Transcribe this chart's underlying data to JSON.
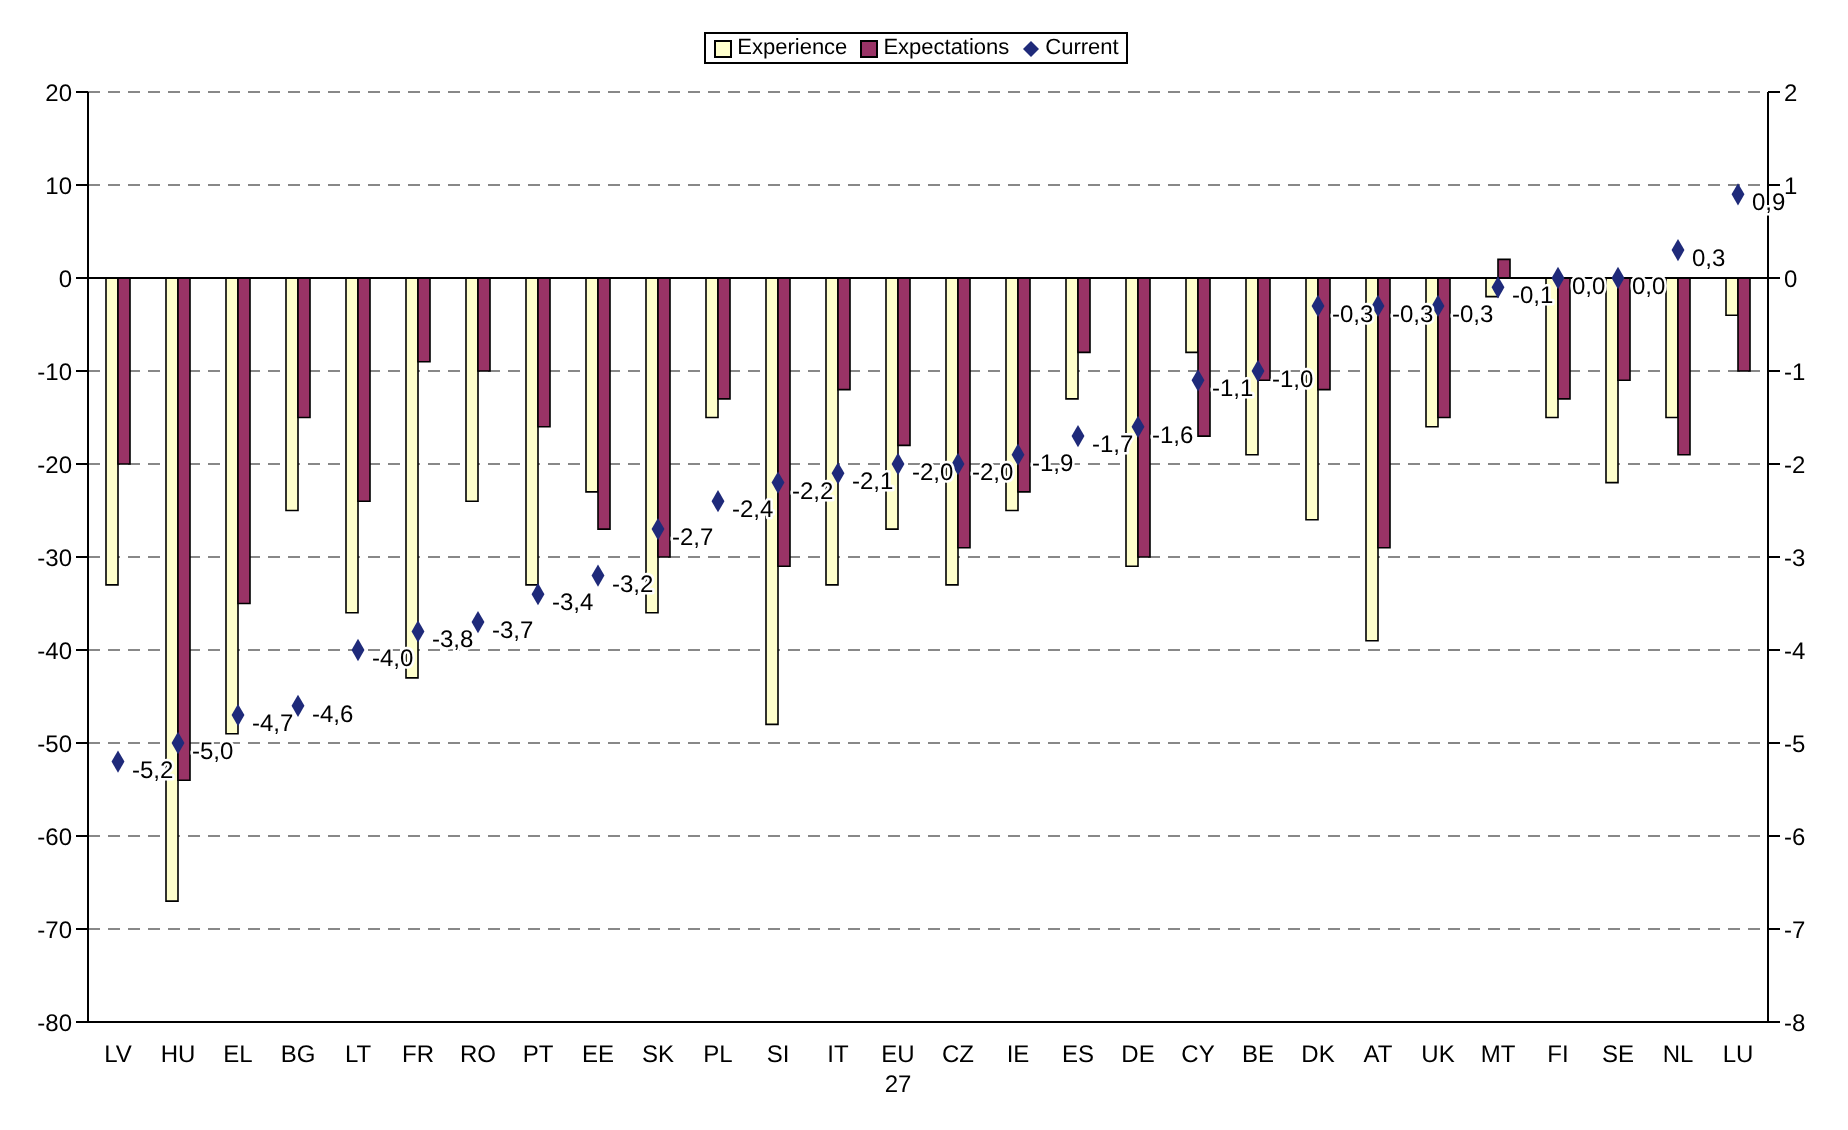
{
  "chart_data": {
    "type": "bar",
    "categories": [
      "LV",
      "HU",
      "EL",
      "BG",
      "LT",
      "FR",
      "RO",
      "PT",
      "EE",
      "SK",
      "PL",
      "SI",
      "IT",
      "EU 27",
      "CZ",
      "IE",
      "ES",
      "DE",
      "CY",
      "BE",
      "DK",
      "AT",
      "UK",
      "MT",
      "FI",
      "SE",
      "NL",
      "LU"
    ],
    "series": [
      {
        "name": "Experience",
        "color": "#ffffcc",
        "values": [
          -33,
          -67,
          -49,
          -25,
          -36,
          -43,
          -24,
          -33,
          -23,
          -36,
          -15,
          -48,
          -33,
          -27,
          -33,
          -25,
          -13,
          -31,
          -8,
          -19,
          -26,
          -39,
          -16,
          -2,
          -15,
          -22,
          -15,
          -4
        ]
      },
      {
        "name": "Expectations",
        "color": "#993366",
        "values": [
          -20,
          -54,
          -35,
          -15,
          -24,
          -9,
          -10,
          -16,
          -27,
          -30,
          -13,
          -31,
          -12,
          -18,
          -29,
          -23,
          -8,
          -30,
          -17,
          -11,
          -12,
          -29,
          -15,
          2,
          -13,
          -11,
          -19,
          -10
        ]
      },
      {
        "name": "Current",
        "type": "scatter",
        "axis": "y2",
        "color": "#1f2a7a",
        "values": [
          -5.2,
          -5.0,
          -4.7,
          -4.6,
          -4.0,
          -3.8,
          -3.7,
          -3.4,
          -3.2,
          -2.7,
          -2.4,
          -2.2,
          -2.1,
          -2.0,
          -2.0,
          -1.9,
          -1.7,
          -1.6,
          -1.1,
          -1.0,
          -0.3,
          -0.3,
          -0.3,
          -0.1,
          0.0,
          0.0,
          0.3,
          0.9
        ],
        "value_labels": [
          "-5,2",
          "-5,0",
          "-4,7",
          "-4,6",
          "-4,0",
          "-3,8",
          "-3,7",
          "-3,4",
          "-3,2",
          "-2,7",
          "-2,4",
          "-2,2",
          "-2,1",
          "-2,0",
          "-2,0",
          "-1,9",
          "-1,7",
          "-1,6",
          "-1,1",
          "-1,0",
          "-0,3",
          "-0,3",
          "-0,3",
          "-0,1",
          "0,0",
          "0,0",
          "0,3",
          "0,9"
        ]
      }
    ],
    "ylim": [
      -80,
      20
    ],
    "yticks": [
      -80,
      -70,
      -60,
      -50,
      -40,
      -30,
      -20,
      -10,
      0,
      10,
      20
    ],
    "y2lim": [
      -8,
      2
    ],
    "y2ticks": [
      -8,
      -7,
      -6,
      -5,
      -4,
      -3,
      -2,
      -1,
      0,
      1,
      2
    ],
    "grid": "y",
    "legend": "top",
    "marker": "diamond"
  }
}
